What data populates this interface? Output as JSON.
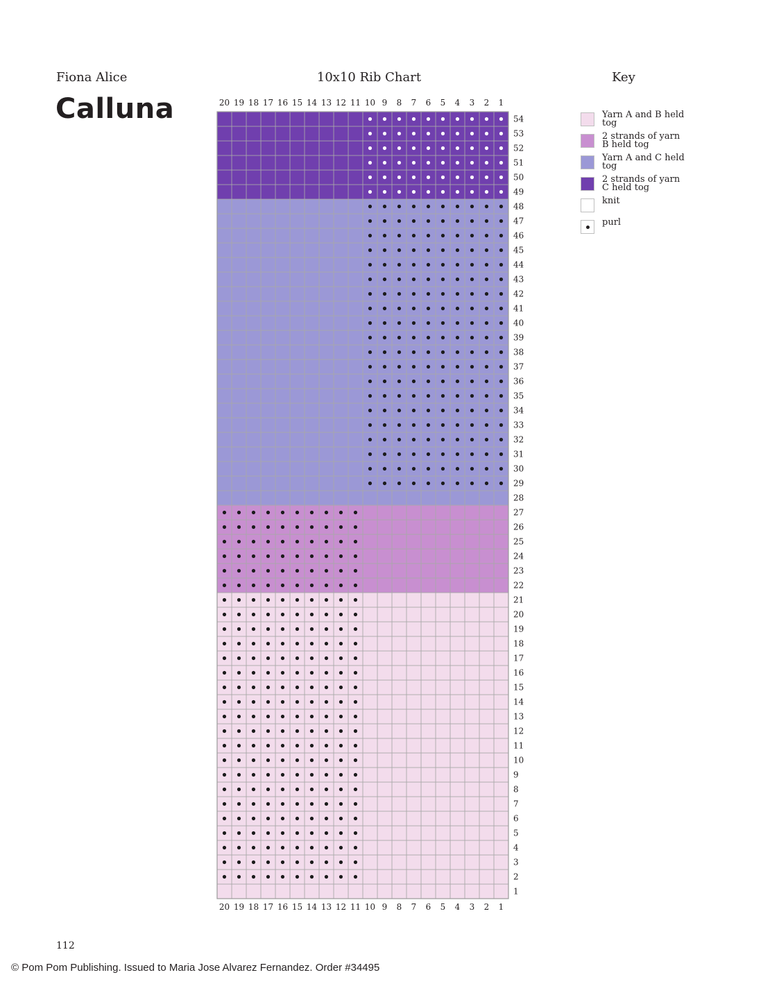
{
  "header": {
    "author": "Fiona Alice",
    "title": "Calluna",
    "key_title": "Key"
  },
  "chart_data": {
    "type": "table",
    "title": "10x10 Rib Chart",
    "columns": 20,
    "rows": 54,
    "column_labels": [
      "20",
      "19",
      "18",
      "17",
      "16",
      "15",
      "14",
      "13",
      "12",
      "11",
      "10",
      "9",
      "8",
      "7",
      "6",
      "5",
      "4",
      "3",
      "2",
      "1"
    ],
    "colors": {
      "yarn_ab": "#f3dcec",
      "yarn_bb": "#c88fd0",
      "yarn_ac": "#9b98d6",
      "yarn_cc": "#703fae",
      "grid": "#a8a8a8",
      "dot_dark": "#1b1b1b",
      "dot_light": "#ffffff"
    },
    "color_bands": [
      {
        "rows": [
          1,
          21
        ],
        "color": "yarn_ab"
      },
      {
        "rows": [
          22,
          27
        ],
        "color": "yarn_bb"
      },
      {
        "rows": [
          28,
          48
        ],
        "color": "yarn_ac"
      },
      {
        "rows": [
          49,
          54
        ],
        "color": "yarn_cc"
      }
    ],
    "purl_regions": [
      {
        "rows": [
          2,
          21
        ],
        "stitches": [
          11,
          20
        ]
      },
      {
        "rows": [
          22,
          27
        ],
        "stitches": [
          11,
          20
        ]
      },
      {
        "rows": [
          29,
          48
        ],
        "stitches": [
          1,
          10
        ]
      },
      {
        "rows": [
          49,
          54
        ],
        "stitches": [
          1,
          10
        ]
      }
    ]
  },
  "key": {
    "items": [
      {
        "id": "yarn_ab",
        "label": "Yarn A and B held tog",
        "color": "#f3dcec",
        "purl": false
      },
      {
        "id": "yarn_bb",
        "label": "2 strands of yarn B held tog",
        "color": "#c88fd0",
        "purl": false
      },
      {
        "id": "yarn_ac",
        "label": "Yarn A and C held tog",
        "color": "#9b98d6",
        "purl": false
      },
      {
        "id": "yarn_cc",
        "label": "2 strands of yarn C held tog",
        "color": "#703fae",
        "purl": false
      },
      {
        "id": "knit",
        "label": "knit",
        "color": "#ffffff",
        "purl": false
      },
      {
        "id": "purl",
        "label": "purl",
        "color": "#ffffff",
        "purl": true
      }
    ]
  },
  "footer": {
    "page_number": "112",
    "copyright": "© Pom Pom Publishing. Issued to Maria Jose Alvarez Fernandez. Order #34495"
  }
}
